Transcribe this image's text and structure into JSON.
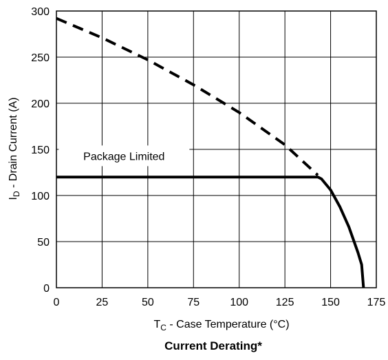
{
  "chart_data": {
    "type": "line",
    "title": "Current Derating*",
    "xlabel": {
      "main": "T",
      "sub": "C",
      "rest": " - Case Temperature (°C)"
    },
    "ylabel": {
      "main": "I",
      "sub": "D",
      "rest": " - Drain Current (A)"
    },
    "xlim": [
      0,
      175
    ],
    "ylim": [
      0,
      300
    ],
    "xticks": [
      0,
      25,
      50,
      75,
      100,
      125,
      150,
      175
    ],
    "yticks": [
      0,
      50,
      100,
      150,
      200,
      250,
      300
    ],
    "grid": true,
    "annotations": [
      {
        "text": "Package Limited",
        "x": 37,
        "y": 143
      }
    ],
    "series": [
      {
        "style": "dashed",
        "x": [
          0,
          25,
          50,
          75,
          100,
          125,
          143
        ],
        "y": [
          292,
          271,
          247,
          220,
          190,
          155,
          122
        ]
      },
      {
        "style": "solid",
        "x": [
          0,
          143,
          145,
          150,
          155,
          160,
          165,
          167,
          168
        ],
        "y": [
          120,
          120,
          118,
          106,
          88,
          66,
          38,
          25,
          0
        ]
      }
    ]
  }
}
